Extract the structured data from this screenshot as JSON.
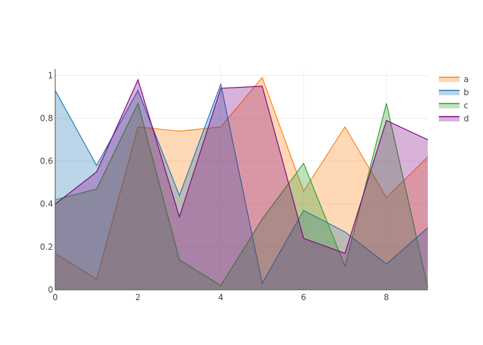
{
  "chart_data": {
    "type": "area",
    "x": [
      0,
      1,
      2,
      3,
      4,
      5,
      6,
      7,
      8,
      9
    ],
    "xlim": [
      0,
      9
    ],
    "ylim": [
      0,
      1.03
    ],
    "x_ticks": [
      0,
      2,
      4,
      6,
      8
    ],
    "x_tick_labels": [
      "0",
      "2",
      "4",
      "6",
      "8"
    ],
    "y_ticks": [
      0,
      0.2,
      0.4,
      0.6,
      0.8,
      1
    ],
    "y_tick_labels": [
      "0",
      "0.2",
      "0.4",
      "0.6",
      "0.8",
      "1"
    ],
    "grid": true,
    "legend_position": "top-right",
    "series": [
      {
        "name": "a",
        "color": "#ff7f0e",
        "values": [
          0.17,
          0.05,
          0.76,
          0.74,
          0.76,
          0.99,
          0.46,
          0.76,
          0.43,
          0.62
        ]
      },
      {
        "name": "b",
        "color": "#1f77b4",
        "values": [
          0.93,
          0.58,
          0.93,
          0.44,
          0.96,
          0.03,
          0.37,
          0.27,
          0.12,
          0.29
        ]
      },
      {
        "name": "c",
        "color": "#2ca02c",
        "values": [
          0.42,
          0.47,
          0.87,
          0.14,
          0.02,
          0.33,
          0.59,
          0.11,
          0.87,
          0.01
        ]
      },
      {
        "name": "d",
        "color": "#800080",
        "values": [
          0.4,
          0.55,
          0.98,
          0.34,
          0.94,
          0.95,
          0.24,
          0.17,
          0.79,
          0.7
        ]
      }
    ]
  }
}
